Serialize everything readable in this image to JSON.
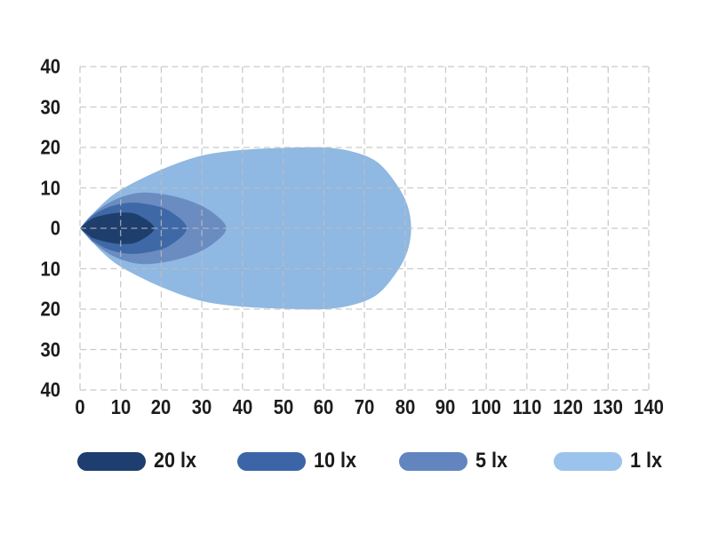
{
  "chart_data": {
    "type": "area",
    "title": "",
    "subtitle": "",
    "description": "Isolux light beam pattern diagram with four nested illuminance contours",
    "xlabel": "",
    "ylabel": "",
    "x_range": [
      0,
      140
    ],
    "y_range": [
      -40,
      40
    ],
    "x_ticks": [
      0,
      10,
      20,
      30,
      40,
      50,
      60,
      70,
      80,
      90,
      100,
      110,
      120,
      130,
      140
    ],
    "y_tick_values": [
      40,
      30,
      20,
      10,
      0,
      -10,
      -20,
      -30,
      -40
    ],
    "y_tick_labels": [
      "40",
      "30",
      "20",
      "10",
      "0",
      "10",
      "20",
      "30",
      "40"
    ],
    "grid": "dashed",
    "grid_color": "#BFBFBF",
    "text_color": "#1c1c1c",
    "legend_position": "bottom",
    "series": [
      {
        "name": "20 lx",
        "fill": "#1E3E6D",
        "reach": 18.3,
        "max_half_width": 3.9,
        "profile": [
          [
            0,
            0
          ],
          [
            3,
            2.4
          ],
          [
            7,
            3.5
          ],
          [
            11,
            3.9
          ],
          [
            14.5,
            3.2
          ],
          [
            18.3,
            0
          ]
        ]
      },
      {
        "name": "10 lx",
        "fill": "#3F68A6",
        "reach": 26.3,
        "max_half_width": 6.3,
        "profile": [
          [
            0,
            0
          ],
          [
            3,
            3
          ],
          [
            7,
            5.2
          ],
          [
            12,
            6.3
          ],
          [
            17,
            5.9
          ],
          [
            22,
            4.3
          ],
          [
            26.3,
            0
          ]
        ]
      },
      {
        "name": "5 lx",
        "fill": "#6A8CC1",
        "reach": 36,
        "max_half_width": 8.7,
        "profile": [
          [
            0,
            0
          ],
          [
            3,
            3.4
          ],
          [
            8,
            6.8
          ],
          [
            14,
            8.7
          ],
          [
            20,
            8.5
          ],
          [
            27,
            6.8
          ],
          [
            32.5,
            4
          ],
          [
            36,
            0
          ]
        ]
      },
      {
        "name": "1 lx",
        "fill": "#8FB8E2",
        "reach": 81.5,
        "max_half_width": 20,
        "profile": [
          [
            0,
            0
          ],
          [
            5,
            5.5
          ],
          [
            10,
            9.5
          ],
          [
            20,
            14.5
          ],
          [
            30,
            18
          ],
          [
            40,
            19.4
          ],
          [
            50,
            19.9
          ],
          [
            60,
            20
          ],
          [
            67,
            19
          ],
          [
            73,
            16.5
          ],
          [
            77.5,
            11.5
          ],
          [
            80.5,
            6
          ],
          [
            81.5,
            0
          ]
        ]
      }
    ],
    "legend": [
      {
        "label": "20 lx",
        "color": "#1D3E6F"
      },
      {
        "label": "10 lx",
        "color": "#3C65A8"
      },
      {
        "label": "5 lx",
        "color": "#6285BF"
      },
      {
        "label": "1 lx",
        "color": "#9CC3EC"
      }
    ]
  }
}
